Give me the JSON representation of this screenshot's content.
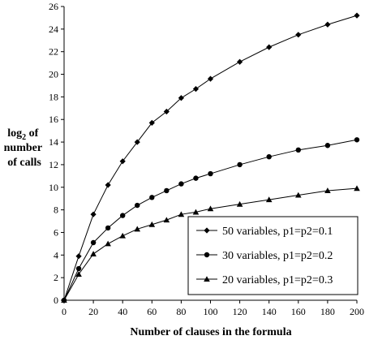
{
  "chart_data": {
    "type": "line",
    "title": "",
    "xlabel": "Number of clauses in the formula",
    "ylabel_lines": [
      "log",
      "of",
      "number",
      "of calls"
    ],
    "ylabel_subscript": "2",
    "xlim": [
      0,
      200
    ],
    "ylim": [
      0,
      26
    ],
    "x_ticks": [
      0,
      20,
      40,
      60,
      80,
      100,
      120,
      140,
      160,
      180,
      200
    ],
    "y_ticks": [
      0,
      2,
      4,
      6,
      8,
      10,
      12,
      14,
      16,
      18,
      20,
      22,
      24,
      26
    ],
    "grid": false,
    "legend_position": "bottom-right",
    "series": [
      {
        "name": "50 variables, p1=p2=0.1",
        "marker": "diamond",
        "x": [
          0,
          10,
          20,
          30,
          40,
          50,
          60,
          70,
          80,
          90,
          100,
          120,
          140,
          160,
          180,
          200
        ],
        "y": [
          0,
          3.9,
          7.6,
          10.2,
          12.3,
          14.0,
          15.7,
          16.7,
          17.9,
          18.7,
          19.6,
          21.1,
          22.4,
          23.5,
          24.4,
          25.2
        ]
      },
      {
        "name": "30 variables, p1=p2=0.2",
        "marker": "circle",
        "x": [
          0,
          10,
          20,
          30,
          40,
          50,
          60,
          70,
          80,
          90,
          100,
          120,
          140,
          160,
          180,
          200
        ],
        "y": [
          0,
          2.8,
          5.1,
          6.4,
          7.5,
          8.4,
          9.1,
          9.7,
          10.3,
          10.8,
          11.2,
          12.0,
          12.7,
          13.3,
          13.7,
          14.2
        ]
      },
      {
        "name": "20 variables, p1=p2=0.3",
        "marker": "triangle",
        "x": [
          0,
          10,
          20,
          30,
          40,
          50,
          60,
          70,
          80,
          90,
          100,
          120,
          140,
          160,
          180,
          200
        ],
        "y": [
          0,
          2.3,
          4.1,
          5.0,
          5.7,
          6.3,
          6.7,
          7.1,
          7.6,
          7.8,
          8.1,
          8.5,
          8.9,
          9.3,
          9.7,
          9.9
        ]
      }
    ]
  }
}
